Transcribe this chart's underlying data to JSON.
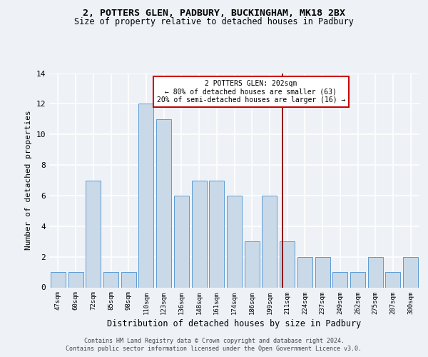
{
  "title1": "2, POTTERS GLEN, PADBURY, BUCKINGHAM, MK18 2BX",
  "title2": "Size of property relative to detached houses in Padbury",
  "xlabel": "Distribution of detached houses by size in Padbury",
  "ylabel": "Number of detached properties",
  "categories": [
    "47sqm",
    "60sqm",
    "72sqm",
    "85sqm",
    "98sqm",
    "110sqm",
    "123sqm",
    "136sqm",
    "148sqm",
    "161sqm",
    "174sqm",
    "186sqm",
    "199sqm",
    "211sqm",
    "224sqm",
    "237sqm",
    "249sqm",
    "262sqm",
    "275sqm",
    "287sqm",
    "300sqm"
  ],
  "values": [
    1,
    1,
    7,
    1,
    1,
    12,
    11,
    6,
    7,
    7,
    6,
    3,
    6,
    3,
    2,
    2,
    1,
    1,
    2,
    1,
    2
  ],
  "bar_color": "#c9d9e8",
  "bar_edge_color": "#5b9bd5",
  "marker_label": "2 POTTERS GLEN: 202sqm",
  "marker_line1": "← 80% of detached houses are smaller (63)",
  "marker_line2": "20% of semi-detached houses are larger (16) →",
  "vline_color": "#8b0000",
  "annotation_box_edge": "#cc0000",
  "footer1": "Contains HM Land Registry data © Crown copyright and database right 2024.",
  "footer2": "Contains public sector information licensed under the Open Government Licence v3.0.",
  "bg_color": "#eef2f7",
  "grid_color": "#ffffff",
  "ylim": [
    0,
    14
  ],
  "yticks": [
    0,
    2,
    4,
    6,
    8,
    10,
    12,
    14
  ]
}
